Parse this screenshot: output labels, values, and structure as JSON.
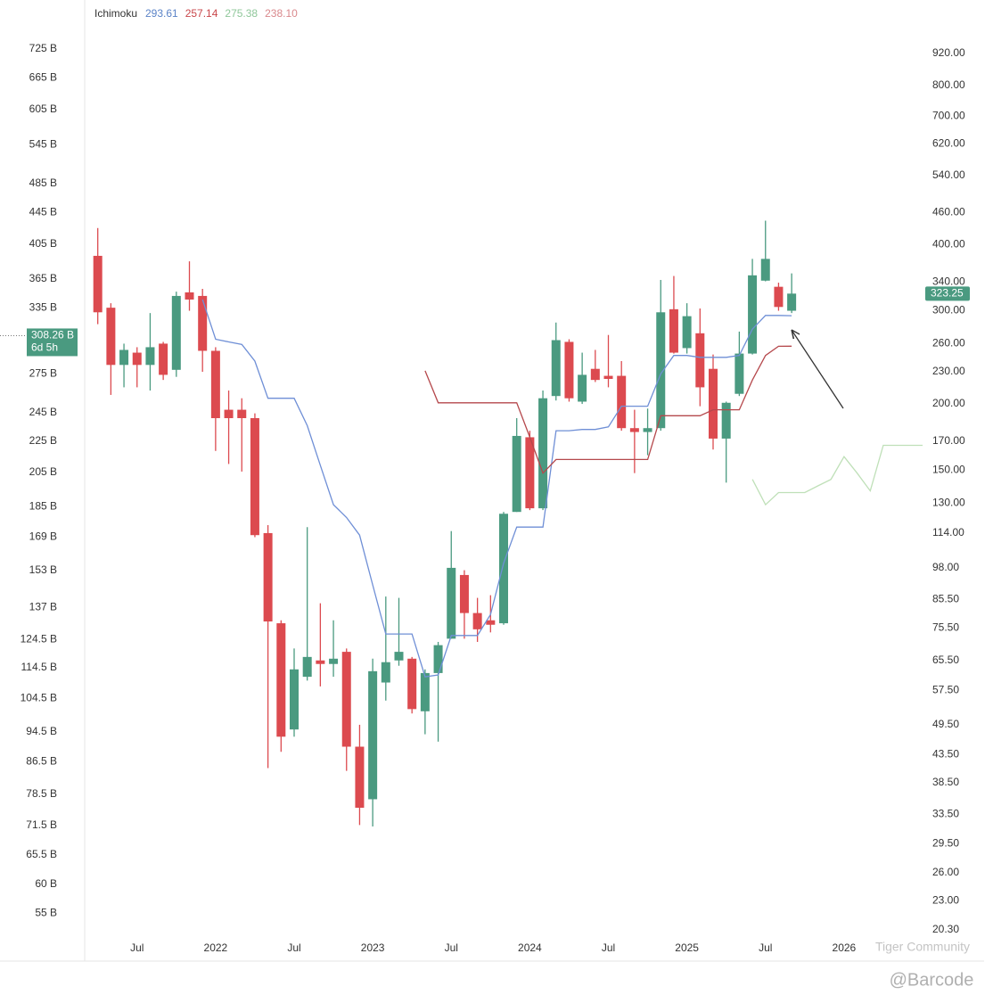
{
  "chart_data": {
    "type": "candlestick",
    "legend": {
      "label": "Ichimoku",
      "values": [
        "293.61",
        "257.14",
        "275.38",
        "238.10"
      ],
      "colors": [
        "#5b83c7",
        "#c9474b",
        "#8fc79a",
        "#d9888c"
      ]
    },
    "x": [
      "2021-04",
      "2021-05",
      "2021-06",
      "2021-07",
      "2021-08",
      "2021-09",
      "2021-10",
      "2021-11",
      "2021-12",
      "2022-01",
      "2022-02",
      "2022-03",
      "2022-04",
      "2022-05",
      "2022-06",
      "2022-07",
      "2022-08",
      "2022-09",
      "2022-10",
      "2022-11",
      "2022-12",
      "2023-01",
      "2023-02",
      "2023-03",
      "2023-04",
      "2023-05",
      "2023-06",
      "2023-07",
      "2023-08",
      "2023-09",
      "2023-10",
      "2023-11",
      "2023-12",
      "2024-01",
      "2024-02",
      "2024-03",
      "2024-04",
      "2024-05",
      "2024-06",
      "2024-07",
      "2024-08",
      "2024-09",
      "2024-10",
      "2024-11",
      "2024-12",
      "2025-01",
      "2025-02",
      "2025-03",
      "2025-04",
      "2025-05",
      "2025-06",
      "2025-07",
      "2025-08",
      "2025-09"
    ],
    "open": [
      381,
      304,
      237,
      250,
      237,
      260,
      232,
      325,
      320,
      252,
      195,
      195,
      188,
      114,
      77,
      48.5,
      61,
      65.5,
      64.5,
      68,
      45,
      35.8,
      59.5,
      65.5,
      66,
      52.5,
      62,
      72,
      95,
      80.5,
      78,
      77,
      125,
      173,
      127,
      207,
      262,
      202,
      233,
      226,
      226,
      180,
      177,
      180,
      302,
      255,
      272,
      233,
      172,
      209,
      249,
      342,
      333,
      300
    ],
    "high": [
      430,
      310,
      260,
      256,
      297,
      262,
      326,
      372,
      330,
      256,
      212,
      205,
      192,
      118,
      78,
      69,
      117,
      84,
      78,
      69,
      49.5,
      66,
      86.5,
      86,
      66.5,
      63,
      71,
      115,
      97,
      86,
      87,
      125,
      188,
      178,
      212,
      285,
      265,
      250,
      253,
      270,
      241,
      195,
      196,
      343,
      349,
      310,
      303,
      248,
      202,
      274,
      376,
      444,
      339,
      353
    ],
    "low": [
      283,
      208,
      215,
      215,
      212,
      222,
      225,
      300,
      230,
      163,
      154,
      149,
      112,
      41,
      44,
      47,
      60,
      58.5,
      61,
      40.5,
      32,
      31.8,
      55,
      64,
      52,
      47.5,
      46,
      72,
      72,
      71,
      74,
      76.5,
      125,
      126,
      126,
      203,
      202,
      200,
      220,
      215,
      178,
      148,
      160,
      178,
      249,
      249,
      198,
      164,
      142,
      207,
      248,
      341,
      300,
      297
    ],
    "close": [
      298,
      237,
      253,
      237,
      256,
      227,
      320,
      315,
      252,
      188,
      188,
      188,
      113,
      77.6,
      47,
      63,
      66.5,
      64.5,
      66,
      45,
      34.5,
      62.5,
      65,
      68,
      53,
      62,
      70,
      98,
      80.5,
      75,
      76.5,
      124,
      174,
      127,
      205,
      264,
      205,
      227,
      222,
      223,
      180,
      177,
      180,
      298,
      250,
      293,
      215,
      172,
      201,
      249,
      350,
      376,
      305,
      323.25
    ],
    "up_color": "#4a9a80",
    "down_color": "#dc4a4f",
    "series": [
      {
        "color": "#6f8fd6",
        "x": [
          "2021-12",
          "2022-01",
          "2022-02",
          "2022-03",
          "2022-04",
          "2022-05",
          "2022-06",
          "2022-07",
          "2022-08",
          "2022-09",
          "2022-10",
          "2022-11",
          "2022-12",
          "2023-01",
          "2023-02",
          "2023-03",
          "2023-04",
          "2023-05",
          "2023-06",
          "2023-07",
          "2023-08",
          "2023-09",
          "2023-10",
          "2023-11",
          "2023-12",
          "2024-01",
          "2024-02",
          "2024-03",
          "2024-04",
          "2024-05",
          "2024-06",
          "2024-07",
          "2024-08",
          "2024-09",
          "2024-10",
          "2024-11",
          "2024-12",
          "2025-01",
          "2025-02",
          "2025-03",
          "2025-04",
          "2025-05",
          "2025-06",
          "2025-07",
          "2025-08",
          "2025-09"
        ],
        "values": [
          315,
          265,
          262,
          259,
          241,
          205,
          205,
          205,
          182,
          153,
          129,
          122,
          113,
          91,
          73.5,
          73.5,
          73.5,
          61,
          61.5,
          73,
          73,
          73,
          80,
          100,
          117,
          117,
          117,
          178,
          178,
          179,
          179,
          181,
          198,
          198,
          198,
          228,
          247,
          247,
          245,
          245,
          245,
          247,
          277,
          294,
          294,
          293.61
        ]
      },
      {
        "color": "#b5484c",
        "x": [
          "2023-05",
          "2023-06",
          "2023-07",
          "2023-08",
          "2023-09",
          "2023-10",
          "2023-11",
          "2023-12",
          "2024-01",
          "2024-02",
          "2024-03",
          "2024-04",
          "2024-05",
          "2024-06",
          "2024-07",
          "2024-08",
          "2024-09",
          "2024-10",
          "2024-11",
          "2024-12",
          "2025-01",
          "2025-02",
          "2025-03",
          "2025-04",
          "2025-05",
          "2025-06",
          "2025-07",
          "2025-08",
          "2025-09"
        ],
        "values": [
          231,
          201,
          201,
          201,
          201,
          201,
          201,
          201,
          173,
          148,
          157,
          157,
          157,
          157,
          157,
          157,
          157,
          157,
          190,
          190,
          190,
          190,
          195,
          195,
          195,
          222,
          247,
          257,
          257.14
        ]
      },
      {
        "color": "#bfe0b8",
        "x": [
          "2025-06",
          "2025-07",
          "2025-08",
          "2025-09",
          "2025-10",
          "2025-11",
          "2025-12",
          "2026-01",
          "2026-02",
          "2026-03",
          "2026-04",
          "2026-05",
          "2026-06",
          "2026-07"
        ],
        "values": [
          144,
          129,
          136,
          136,
          136,
          140,
          144,
          159,
          148,
          137,
          167,
          167,
          167,
          167
        ]
      }
    ],
    "xlim": [
      "2021-03",
      "2026-07"
    ],
    "xticks": [
      {
        "value": "2021-07",
        "label": "Jul"
      },
      {
        "value": "2022-01",
        "label": "2022"
      },
      {
        "value": "2022-07",
        "label": "Jul"
      },
      {
        "value": "2023-01",
        "label": "2023"
      },
      {
        "value": "2023-07",
        "label": "Jul"
      },
      {
        "value": "2024-01",
        "label": "2024"
      },
      {
        "value": "2024-07",
        "label": "Jul"
      },
      {
        "value": "2025-01",
        "label": "2025"
      },
      {
        "value": "2025-07",
        "label": "Jul"
      },
      {
        "value": "2026-01",
        "label": "2026"
      }
    ],
    "ylim": [
      17.7,
      1160
    ],
    "log_scale": true,
    "yticks": [
      {
        "value": 920,
        "label": "920.00"
      },
      {
        "value": 800,
        "label": "800.00"
      },
      {
        "value": 700,
        "label": "700.00"
      },
      {
        "value": 620,
        "label": "620.00"
      },
      {
        "value": 540,
        "label": "540.00"
      },
      {
        "value": 460,
        "label": "460.00"
      },
      {
        "value": 400,
        "label": "400.00"
      },
      {
        "value": 340,
        "label": "340.00"
      },
      {
        "value": 300,
        "label": "300.00"
      },
      {
        "value": 260,
        "label": "260.00"
      },
      {
        "value": 230,
        "label": "230.00"
      },
      {
        "value": 200,
        "label": "200.00"
      },
      {
        "value": 170,
        "label": "170.00"
      },
      {
        "value": 150,
        "label": "150.00"
      },
      {
        "value": 130,
        "label": "130.00"
      },
      {
        "value": 114,
        "label": "114.00"
      },
      {
        "value": 98,
        "label": "98.00"
      },
      {
        "value": 85.5,
        "label": "85.50"
      },
      {
        "value": 75.5,
        "label": "75.50"
      },
      {
        "value": 65.5,
        "label": "65.50"
      },
      {
        "value": 57.5,
        "label": "57.50"
      },
      {
        "value": 49.5,
        "label": "49.50"
      },
      {
        "value": 43.5,
        "label": "43.50"
      },
      {
        "value": 38.5,
        "label": "38.50"
      },
      {
        "value": 33.5,
        "label": "33.50"
      },
      {
        "value": 29.5,
        "label": "29.50"
      },
      {
        "value": 26,
        "label": "26.00"
      },
      {
        "value": 23,
        "label": "23.00"
      },
      {
        "value": 20.3,
        "label": "20.30"
      }
    ],
    "last_price": 323.25,
    "y2lim": [
      47.7,
      839
    ],
    "y2ticks": [
      {
        "value": 725,
        "label": "725 B"
      },
      {
        "value": 665,
        "label": "665 B"
      },
      {
        "value": 605,
        "label": "605 B"
      },
      {
        "value": 545,
        "label": "545 B"
      },
      {
        "value": 485,
        "label": "485 B"
      },
      {
        "value": 445,
        "label": "445 B"
      },
      {
        "value": 405,
        "label": "405 B"
      },
      {
        "value": 365,
        "label": "365 B"
      },
      {
        "value": 335,
        "label": "335 B"
      },
      {
        "value": 275,
        "label": "275 B"
      },
      {
        "value": 245,
        "label": "245 B"
      },
      {
        "value": 225,
        "label": "225 B"
      },
      {
        "value": 205,
        "label": "205 B"
      },
      {
        "value": 185,
        "label": "185 B"
      },
      {
        "value": 169,
        "label": "169 B"
      },
      {
        "value": 153,
        "label": "153 B"
      },
      {
        "value": 137,
        "label": "137 B"
      },
      {
        "value": 124.5,
        "label": "124.5 B"
      },
      {
        "value": 114.5,
        "label": "114.5 B"
      },
      {
        "value": 104.5,
        "label": "104.5 B"
      },
      {
        "value": 94.5,
        "label": "94.5 B"
      },
      {
        "value": 86.5,
        "label": "86.5 B"
      },
      {
        "value": 78.5,
        "label": "78.5 B"
      },
      {
        "value": 71.5,
        "label": "71.5 B"
      },
      {
        "value": 65.5,
        "label": "65.5 B"
      },
      {
        "value": 60,
        "label": "60 B"
      },
      {
        "value": 55,
        "label": "55 B"
      }
    ],
    "y2_marker": {
      "value": 308.26,
      "label": "308.26 B",
      "countdown": "6d 5h"
    },
    "grid": false,
    "watermarks": [
      "Tiger Community",
      "@Barcode"
    ]
  }
}
